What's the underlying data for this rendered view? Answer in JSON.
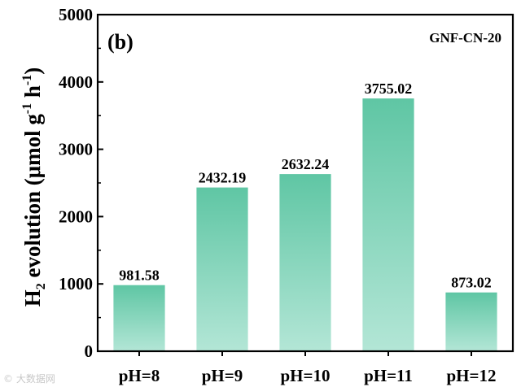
{
  "chart_data": {
    "type": "bar",
    "panel_label": "(b)",
    "sample": "GNF-CN-20",
    "categories": [
      "pH=8",
      "pH=9",
      "pH=10",
      "pH=11",
      "pH=12"
    ],
    "values": [
      981.58,
      2432.19,
      2632.24,
      3755.02,
      873.02
    ],
    "value_labels": [
      "981.58",
      "2432.19",
      "2632.24",
      "3755.02",
      "873.02"
    ],
    "ylabel": {
      "prefix": "H",
      "sub": "2",
      "middle": " evolution (μmol g",
      "sup1": "-1",
      "between": " h",
      "sup2": "-1",
      "suffix": ")"
    },
    "ylim": [
      0,
      5000
    ],
    "yticks": [
      0,
      1000,
      2000,
      3000,
      4000,
      5000
    ],
    "grid": false,
    "colors": {
      "bar_top": "#5fc6a4",
      "bar_bottom": "#b3e6d6",
      "axis": "#000000"
    }
  },
  "watermark": "© 大数据网"
}
